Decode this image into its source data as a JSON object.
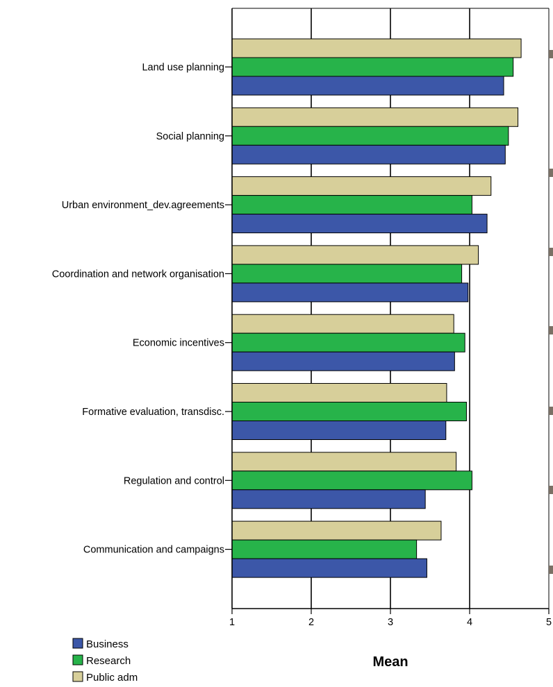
{
  "chart_data": {
    "type": "bar",
    "orientation": "horizontal",
    "categories": [
      "Land use planning",
      "Social planning",
      "Urban environment_dev.agreements",
      "Coordination and network organisation",
      "Economic incentives",
      "Formative evaluation, transdisc.",
      "Regulation and control",
      "Communication and campaigns"
    ],
    "series": [
      {
        "name": "Public adm",
        "color": "#d7cf9a",
        "values": [
          4.65,
          4.61,
          4.27,
          4.11,
          3.8,
          3.71,
          3.83,
          3.64
        ]
      },
      {
        "name": "Research",
        "color": "#27b34a",
        "values": [
          4.55,
          4.49,
          4.03,
          3.9,
          3.94,
          3.96,
          4.03,
          3.33
        ]
      },
      {
        "name": "Business",
        "color": "#3c57a8",
        "values": [
          4.43,
          4.45,
          4.22,
          3.98,
          3.81,
          3.7,
          3.44,
          3.46
        ]
      }
    ],
    "legend_order": [
      "Business",
      "Research",
      "Public adm"
    ],
    "xlabel": "Mean",
    "ylabel": "",
    "xlim": [
      1,
      5
    ],
    "xticks": [
      "1",
      "2",
      "3",
      "4",
      "5"
    ],
    "grid": "vertical",
    "legend_position": "bottom-left"
  }
}
